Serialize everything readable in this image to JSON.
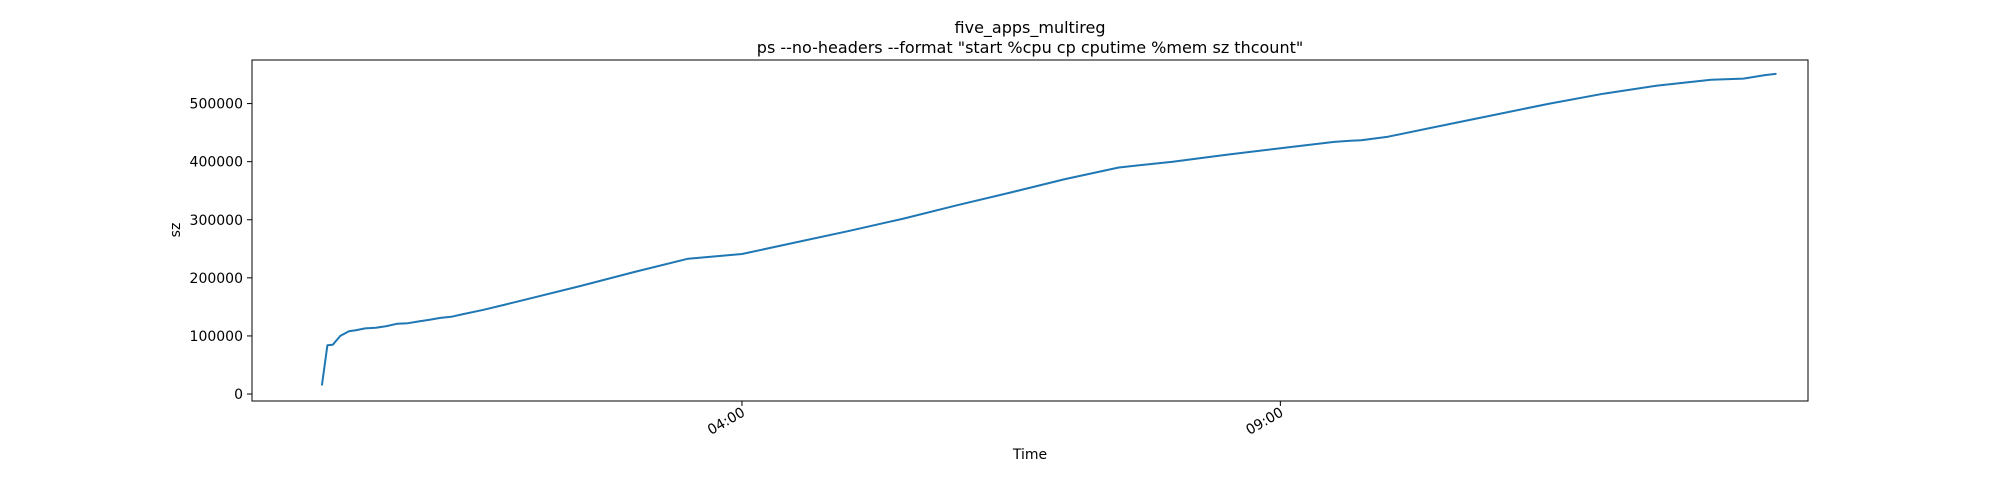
{
  "chart_data": {
    "type": "line",
    "title": "five_apps_multireg",
    "subtitle": "ps --no-headers --format \"start %cpu cp cputime %mem sz thcount\"",
    "xlabel": "Time",
    "ylabel": "sz",
    "x_unit": "hours of day",
    "x_range": [
      -0.55,
      13.9
    ],
    "ylim": [
      -12000,
      575000
    ],
    "y_ticks": [
      0,
      100000,
      200000,
      300000,
      400000,
      500000
    ],
    "y_tick_labels": [
      "0",
      "100000",
      "200000",
      "300000",
      "400000",
      "500000"
    ],
    "x_ticks": [
      4,
      9
    ],
    "x_tick_labels": [
      "04:00",
      "09:00"
    ],
    "grid": false,
    "legend": "none",
    "colors": {
      "series": "#1f77b4",
      "axes": "#000000",
      "background": "#ffffff"
    },
    "series": [
      {
        "x": [
          0.1,
          0.15,
          0.2,
          0.27,
          0.35,
          0.42,
          0.5,
          0.6,
          0.7,
          0.8,
          0.9,
          1.0,
          1.1,
          1.2,
          1.3,
          1.4,
          1.6,
          1.8,
          2.0,
          2.5,
          3.0,
          3.5,
          4.0,
          4.5,
          5.0,
          5.5,
          6.0,
          6.5,
          7.0,
          7.5,
          8.0,
          8.5,
          9.0,
          9.5,
          9.65,
          9.75,
          10.0,
          10.5,
          11.0,
          11.5,
          12.0,
          12.5,
          13.0,
          13.3,
          13.5,
          13.6
        ],
        "y": [
          16000,
          84000,
          85000,
          100000,
          108000,
          110000,
          113000,
          114000,
          117000,
          121000,
          122000,
          125000,
          128000,
          131000,
          133000,
          137000,
          145000,
          154000,
          163000,
          186000,
          210000,
          233000,
          241000,
          261000,
          281000,
          302000,
          325000,
          347000,
          370000,
          390000,
          400000,
          412000,
          423000,
          434000,
          436000,
          437000,
          443000,
          462000,
          481000,
          500000,
          517000,
          531000,
          541000,
          543000,
          549000,
          551000
        ]
      }
    ]
  }
}
